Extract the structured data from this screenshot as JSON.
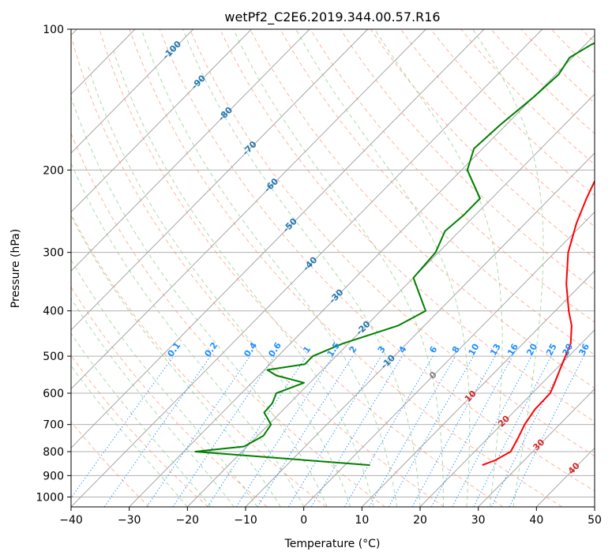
{
  "chart_data": {
    "type": "line",
    "title": "wetPf2_C2E6.2019.344.00.57.R16",
    "xlabel": "Temperature (°C)",
    "ylabel": "Pressure (hPa)",
    "xlim": [
      -40,
      50
    ],
    "ylim": [
      1050,
      100
    ],
    "y_scale": "log",
    "skew_t": true,
    "grid": true,
    "x_ticks": [
      -40,
      -30,
      -20,
      -10,
      0,
      10,
      20,
      30,
      40,
      50
    ],
    "y_ticks": [
      100,
      200,
      300,
      400,
      500,
      600,
      700,
      800,
      900,
      1000
    ],
    "series": [
      {
        "color": "#ff0000",
        "points": [
          {
            "p": 855,
            "t": 23.6
          },
          {
            "p": 835,
            "t": 25.0
          },
          {
            "p": 800,
            "t": 26.2
          },
          {
            "p": 750,
            "t": 25.2
          },
          {
            "p": 700,
            "t": 24.0
          },
          {
            "p": 650,
            "t": 23.2
          },
          {
            "p": 600,
            "t": 23.1
          },
          {
            "p": 570,
            "t": 22.1
          },
          {
            "p": 520,
            "t": 20.2
          },
          {
            "p": 470,
            "t": 18.2
          },
          {
            "p": 430,
            "t": 15.3
          },
          {
            "p": 400,
            "t": 12.3
          },
          {
            "p": 350,
            "t": 7.3
          },
          {
            "p": 300,
            "t": 2.3
          },
          {
            "p": 260,
            "t": -1.2
          },
          {
            "p": 230,
            "t": -3.7
          },
          {
            "p": 200,
            "t": -6.2
          },
          {
            "p": 180,
            "t": -8.2
          },
          {
            "p": 150,
            "t": -12.7
          },
          {
            "p": 130,
            "t": -16.0
          },
          {
            "p": 120,
            "t": -16.2
          },
          {
            "p": 110,
            "t": -14.2
          },
          {
            "p": 100,
            "t": -13.2
          }
        ]
      },
      {
        "color": "#008000",
        "points": [
          {
            "p": 855,
            "t": 4.3
          },
          {
            "p": 800,
            "t": -28.0
          },
          {
            "p": 780,
            "t": -20.5
          },
          {
            "p": 740,
            "t": -19.0
          },
          {
            "p": 700,
            "t": -19.6
          },
          {
            "p": 660,
            "t": -22.8
          },
          {
            "p": 630,
            "t": -23.0
          },
          {
            "p": 600,
            "t": -24.0
          },
          {
            "p": 590,
            "t": -23.0
          },
          {
            "p": 570,
            "t": -21.0
          },
          {
            "p": 550,
            "t": -27.0
          },
          {
            "p": 535,
            "t": -29.5
          },
          {
            "p": 520,
            "t": -24.0
          },
          {
            "p": 500,
            "t": -24.0
          },
          {
            "p": 470,
            "t": -21.0
          },
          {
            "p": 430,
            "t": -14.5
          },
          {
            "p": 400,
            "t": -12.3
          },
          {
            "p": 370,
            "t": -16.0
          },
          {
            "p": 340,
            "t": -20.0
          },
          {
            "p": 300,
            "t": -20.5
          },
          {
            "p": 270,
            "t": -22.5
          },
          {
            "p": 250,
            "t": -22.0
          },
          {
            "p": 230,
            "t": -22.0
          },
          {
            "p": 200,
            "t": -29.0
          },
          {
            "p": 180,
            "t": -31.5
          },
          {
            "p": 160,
            "t": -31.0
          },
          {
            "p": 140,
            "t": -30.0
          },
          {
            "p": 125,
            "t": -29.5
          },
          {
            "p": 115,
            "t": -30.5
          },
          {
            "p": 108,
            "t": -29.0
          },
          {
            "p": 100,
            "t": -26.0
          }
        ]
      }
    ],
    "isotherm_labels": [
      "-100",
      "-90",
      "-80",
      "-70",
      "-60",
      "-50",
      "-40",
      "-30",
      "-20",
      "-10",
      "0",
      "10",
      "20",
      "30",
      "40"
    ],
    "mixing_ratio_labels": [
      "0.1",
      "0.2",
      "0.4",
      "0.6",
      "1",
      "1.5",
      "2",
      "3",
      "4",
      "6",
      "8",
      "10",
      "13",
      "16",
      "20",
      "25",
      "30",
      "36"
    ],
    "colors": {
      "temperature": "#ff0000",
      "dewpoint": "#008000",
      "isotherm": "#808080",
      "dry_adiabat": "#ff8c69",
      "moist_adiabat": "#8fcf8f",
      "mixing_ratio": "#1e90ff",
      "isotherm_label_cold": "#1f77b4",
      "isotherm_label_zero": "#808080",
      "isotherm_label_warm": "#d62728",
      "mixing_label": "#1e90ff"
    }
  }
}
